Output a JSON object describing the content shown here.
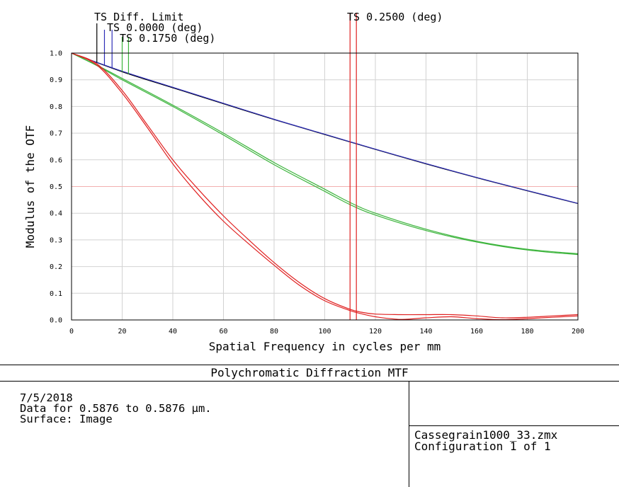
{
  "chart_data": {
    "type": "line",
    "title": "Polychromatic Diffraction MTF",
    "xlabel": "Spatial Frequency in cycles per mm",
    "ylabel": "Modulus of the OTF",
    "xlim": [
      0,
      200
    ],
    "ylim": [
      0,
      1
    ],
    "xticks": [
      "0",
      "20",
      "40",
      "60",
      "80",
      "100",
      "120",
      "140",
      "160",
      "180",
      "200"
    ],
    "yticks": [
      "0.0",
      "0.1",
      "0.2",
      "0.3",
      "0.4",
      "0.5",
      "0.6",
      "0.7",
      "0.8",
      "0.9",
      "1.0"
    ],
    "grid": true,
    "legend_labels": [
      "TS Diff. Limit",
      "TS 0.0000 (deg)",
      "TS 0.1750 (deg)",
      "TS 0.2500 (deg)"
    ],
    "series": [
      {
        "color": "#000000",
        "x": [
          0,
          20,
          40,
          60,
          80,
          100,
          120,
          140,
          160,
          180,
          200
        ],
        "y": [
          1.0,
          0.93,
          0.87,
          0.81,
          0.751,
          0.695,
          0.639,
          0.585,
          0.533,
          0.484,
          0.436
        ]
      },
      {
        "color": "#2e2eb8",
        "x": [
          0,
          20,
          40,
          60,
          80,
          100,
          120,
          140,
          160,
          180,
          200
        ],
        "y": [
          1.0,
          0.932,
          0.872,
          0.812,
          0.752,
          0.696,
          0.64,
          0.586,
          0.534,
          0.485,
          0.437
        ]
      },
      {
        "color": "#3cb43c",
        "x": [
          0,
          10,
          20,
          40,
          60,
          80,
          100,
          110,
          120,
          140,
          160,
          180,
          200
        ],
        "y": [
          1.0,
          0.955,
          0.905,
          0.805,
          0.7,
          0.59,
          0.49,
          0.44,
          0.4,
          0.34,
          0.295,
          0.265,
          0.248
        ]
      },
      {
        "color": "#3cb43c",
        "x": [
          0,
          10,
          20,
          40,
          60,
          80,
          100,
          110,
          120,
          140,
          160,
          180,
          200
        ],
        "y": [
          1.0,
          0.953,
          0.9,
          0.8,
          0.693,
          0.582,
          0.482,
          0.432,
          0.393,
          0.335,
          0.292,
          0.262,
          0.245
        ]
      },
      {
        "color": "#e02020",
        "x": [
          0,
          10,
          20,
          30,
          40,
          50,
          60,
          70,
          80,
          90,
          100,
          110,
          115,
          120,
          130,
          140,
          150,
          160,
          170,
          180,
          190,
          200
        ],
        "y": [
          1.0,
          0.96,
          0.86,
          0.73,
          0.6,
          0.49,
          0.39,
          0.3,
          0.215,
          0.14,
          0.08,
          0.04,
          0.028,
          0.022,
          0.02,
          0.02,
          0.02,
          0.015,
          0.008,
          0.01,
          0.015,
          0.02
        ]
      },
      {
        "color": "#e02020",
        "x": [
          0,
          10,
          20,
          30,
          40,
          50,
          60,
          70,
          80,
          90,
          100,
          110,
          115,
          120,
          130,
          140,
          150,
          160,
          170,
          180,
          190,
          200
        ],
        "y": [
          1.0,
          0.955,
          0.85,
          0.72,
          0.585,
          0.47,
          0.37,
          0.285,
          0.205,
          0.13,
          0.072,
          0.035,
          0.022,
          0.012,
          0.002,
          0.008,
          0.012,
          0.005,
          0.001,
          0.005,
          0.01,
          0.015
        ]
      }
    ],
    "markers": [
      {
        "label": "TS Diff. Limit",
        "color": "#000000",
        "x": [
          10
        ]
      },
      {
        "label": "TS 0.0000 (deg)",
        "color": "#2e2eb8",
        "x": [
          13,
          16
        ]
      },
      {
        "label": "TS 0.1750 (deg)",
        "color": "#3cb43c",
        "x": [
          20,
          22.5
        ]
      },
      {
        "label": "TS 0.2500 (deg)",
        "color": "#e02020",
        "x": [
          110,
          112.5
        ]
      }
    ]
  },
  "footer": {
    "title": "Polychromatic Diffraction MTF",
    "date": "7/5/2018",
    "data_line": "Data for 0.5876 to 0.5876 µm.",
    "surface_line": "Surface: Image",
    "file": "Cassegrain1000_33.zmx",
    "config": "Configuration 1 of 1"
  }
}
